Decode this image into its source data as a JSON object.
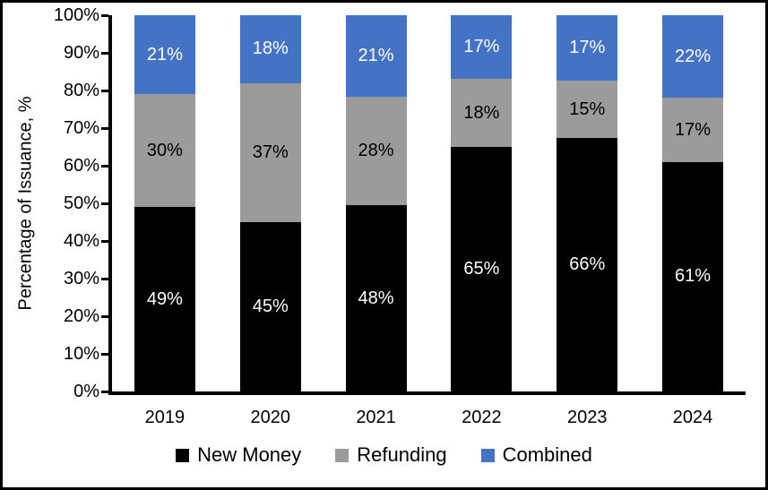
{
  "chart_data": {
    "type": "bar",
    "stacked": true,
    "title": "",
    "categories": [
      "2019",
      "2020",
      "2021",
      "2022",
      "2023",
      "2024"
    ],
    "series": [
      {
        "name": "New Money",
        "color": "#000000",
        "label_color": "#ffffff",
        "values": [
          49,
          45,
          48,
          65,
          66,
          61
        ]
      },
      {
        "name": "Refunding",
        "color": "#9b9b9b",
        "label_color": "#000000",
        "values": [
          30,
          37,
          28,
          18,
          15,
          17
        ]
      },
      {
        "name": "Combined",
        "color": "#4472c4",
        "label_color": "#ffffff",
        "values": [
          21,
          18,
          21,
          17,
          17,
          22
        ]
      }
    ],
    "xlabel": "",
    "ylabel": "Percentage of Issuance, %",
    "ylim": [
      0,
      100
    ],
    "y_ticks": [
      "100%",
      "90%",
      "80%",
      "70%",
      "60%",
      "50%",
      "40%",
      "30%",
      "20%",
      "10%",
      "0%"
    ],
    "value_suffix": "%",
    "legend_position": "bottom",
    "grid": false
  },
  "colors": {
    "axis": "#000000",
    "frame_border": "#000000",
    "background": "#ffffff"
  }
}
